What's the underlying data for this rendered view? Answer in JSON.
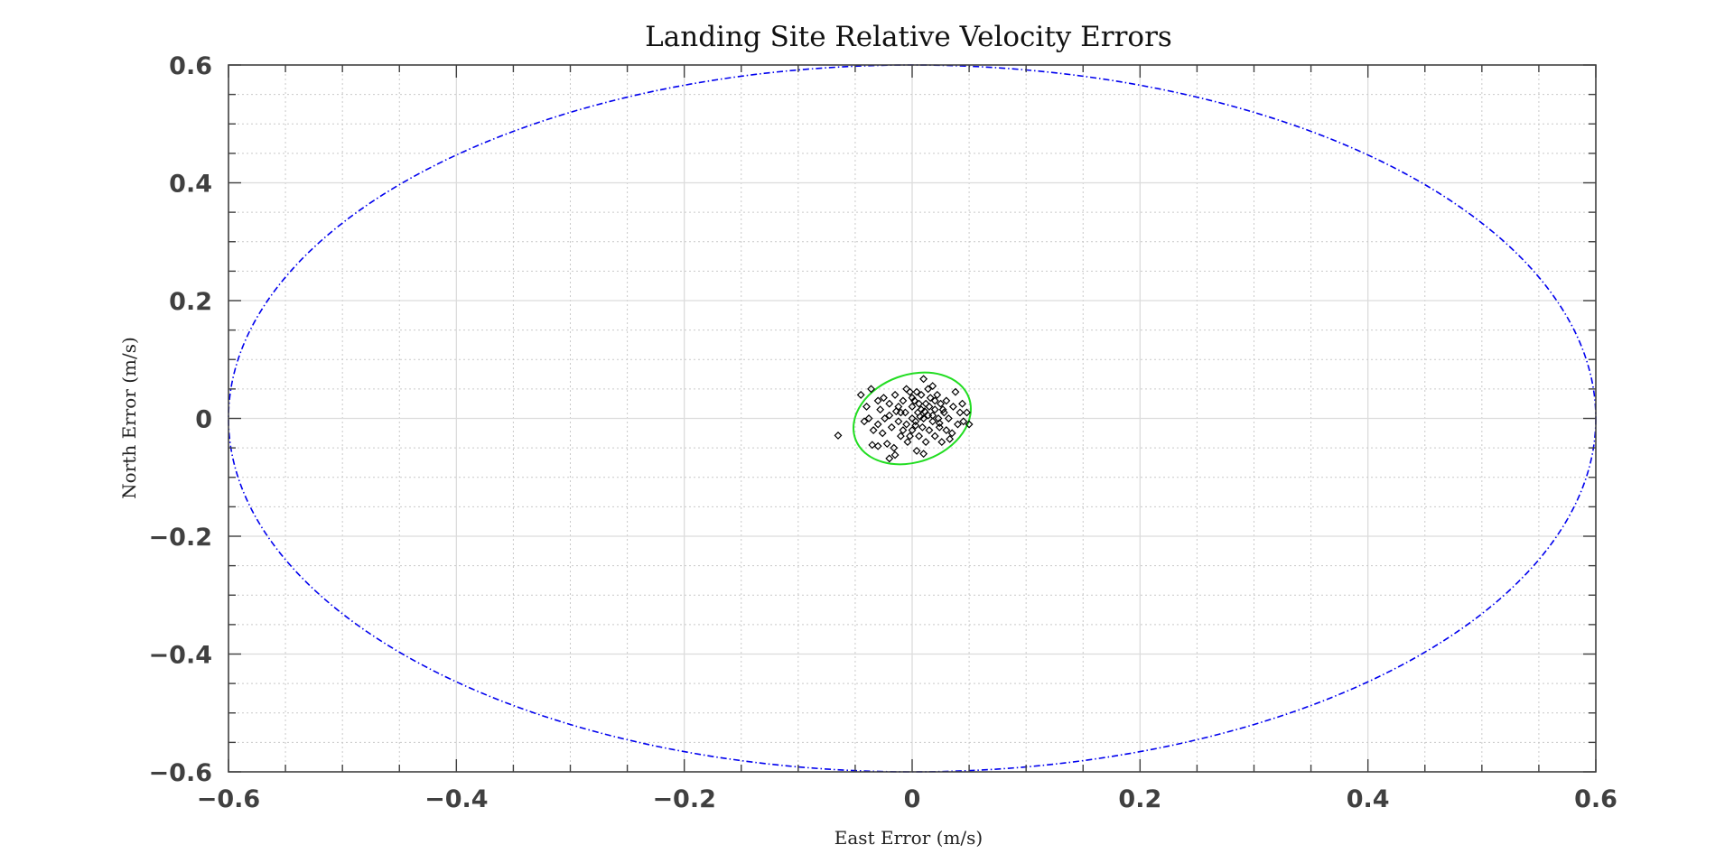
{
  "chart_data": {
    "type": "scatter",
    "title": "Landing Site Relative Velocity Errors",
    "xlabel": "East Error (m/s)",
    "ylabel": "North Error (m/s)",
    "xlim": [
      -0.6,
      0.6
    ],
    "ylim": [
      -0.6,
      0.6
    ],
    "xticks": [
      -0.6,
      -0.4,
      -0.2,
      0,
      0.2,
      0.4,
      0.6
    ],
    "yticks": [
      -0.6,
      -0.4,
      -0.2,
      0,
      0.2,
      0.4,
      0.6
    ],
    "xtick_labels": [
      "−0.6",
      "−0.4",
      "−0.2",
      "0",
      "0.2",
      "0.4",
      "0.6"
    ],
    "ytick_labels": [
      "−0.6",
      "−0.4",
      "−0.2",
      "0",
      "0.2",
      "0.4",
      "0.6"
    ],
    "minor_step": 0.05,
    "grid": true,
    "series": [
      {
        "kind": "ellipse",
        "color": "#0000ee",
        "line_style": "dash-dot",
        "center": [
          0,
          0
        ],
        "semi_axes": [
          0.6,
          0.6
        ],
        "rotation_deg": 0
      },
      {
        "kind": "ellipse",
        "color": "#22dd22",
        "line_style": "solid",
        "center": [
          0,
          0
        ],
        "semi_axes": [
          0.053,
          0.074
        ],
        "rotation_deg": 20
      },
      {
        "kind": "scatter",
        "color": "#000000",
        "marker": "diamond",
        "points": [
          [
            -0.065,
            -0.029
          ],
          [
            -0.045,
            0.04
          ],
          [
            -0.036,
            0.05
          ],
          [
            -0.04,
            0.02
          ],
          [
            -0.042,
            -0.005
          ],
          [
            -0.035,
            -0.045
          ],
          [
            -0.03,
            -0.047
          ],
          [
            -0.022,
            -0.043
          ],
          [
            -0.02,
            -0.068
          ],
          [
            -0.015,
            -0.062
          ],
          [
            -0.03,
            0.03
          ],
          [
            -0.025,
            0.035
          ],
          [
            -0.028,
            0.015
          ],
          [
            -0.03,
            -0.01
          ],
          [
            -0.026,
            -0.025
          ],
          [
            -0.02,
            0.025
          ],
          [
            -0.02,
            0.005
          ],
          [
            -0.018,
            -0.015
          ],
          [
            -0.015,
            0.04
          ],
          [
            -0.012,
            0.02
          ],
          [
            -0.012,
            -0.005
          ],
          [
            -0.01,
            -0.03
          ],
          [
            -0.008,
            0.03
          ],
          [
            -0.006,
            0.01
          ],
          [
            -0.005,
            -0.01
          ],
          [
            -0.004,
            -0.04
          ],
          [
            -0.002,
            0.045
          ],
          [
            0.0,
            0.02
          ],
          [
            0.0,
            0.0
          ],
          [
            0.0,
            -0.02
          ],
          [
            0.002,
            0.03
          ],
          [
            0.003,
            -0.005
          ],
          [
            0.004,
            -0.055
          ],
          [
            0.005,
            0.01
          ],
          [
            0.006,
            -0.03
          ],
          [
            0.008,
            0.04
          ],
          [
            0.008,
            0.015
          ],
          [
            0.009,
            -0.015
          ],
          [
            0.01,
            0.067
          ],
          [
            0.01,
            0.0
          ],
          [
            0.012,
            0.025
          ],
          [
            0.012,
            -0.04
          ],
          [
            0.014,
            0.005
          ],
          [
            0.015,
            -0.02
          ],
          [
            0.016,
            0.035
          ],
          [
            0.018,
            0.055
          ],
          [
            0.018,
            -0.005
          ],
          [
            0.02,
            0.015
          ],
          [
            0.02,
            -0.03
          ],
          [
            0.022,
            0.04
          ],
          [
            0.023,
            0.0
          ],
          [
            0.024,
            -0.015
          ],
          [
            0.025,
            0.025
          ],
          [
            0.026,
            -0.04
          ],
          [
            0.028,
            0.01
          ],
          [
            0.03,
            0.03
          ],
          [
            0.03,
            -0.02
          ],
          [
            0.032,
            0.0
          ],
          [
            0.035,
            -0.025
          ],
          [
            0.036,
            0.02
          ],
          [
            0.038,
            0.045
          ],
          [
            0.04,
            -0.01
          ],
          [
            0.042,
            0.01
          ],
          [
            0.045,
            -0.005
          ],
          [
            0.048,
            0.01
          ],
          [
            0.05,
            -0.01
          ],
          [
            -0.038,
            0.0
          ],
          [
            -0.034,
            -0.02
          ],
          [
            -0.016,
            -0.05
          ],
          [
            -0.005,
            0.05
          ],
          [
            0.0,
            0.035
          ],
          [
            0.004,
            0.045
          ],
          [
            0.01,
            -0.06
          ],
          [
            0.014,
            0.05
          ],
          [
            -0.01,
            0.01
          ],
          [
            -0.008,
            -0.02
          ],
          [
            0.006,
            0.025
          ],
          [
            0.015,
            0.02
          ],
          [
            0.027,
            0.015
          ],
          [
            0.018,
            0.005
          ],
          [
            -0.024,
            0.0
          ],
          [
            -0.002,
            -0.03
          ],
          [
            0.033,
            -0.035
          ],
          [
            0.044,
            0.025
          ],
          [
            0.02,
            0.03
          ],
          [
            0.011,
            0.012
          ],
          [
            0.003,
            -0.012
          ],
          [
            -0.014,
            0.012
          ],
          [
            0.024,
            -0.008
          ],
          [
            0.007,
            0.003
          ]
        ]
      }
    ]
  }
}
